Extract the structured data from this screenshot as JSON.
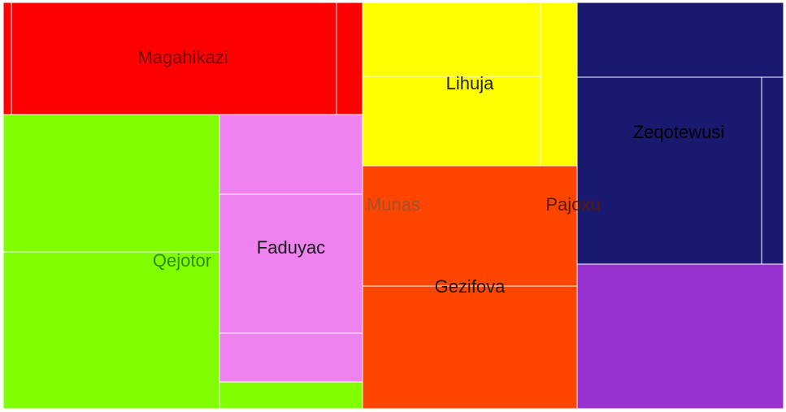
{
  "chart_data": {
    "type": "treemap",
    "title": "",
    "groups": [
      {
        "name": "Magahikazi",
        "color": "#ff0000",
        "label_color": "#7a0000",
        "children": [
          {
            "name": "",
            "value": 10
          },
          {
            "name": "",
            "value": 550
          },
          {
            "name": "",
            "value": 44
          }
        ]
      },
      {
        "name": "Qejotor",
        "color": "#7fff00",
        "label_color": "#2e8b00",
        "children": [
          {
            "name": "",
            "value": 450
          },
          {
            "name": "",
            "value": 515
          },
          {
            "name": "",
            "value": 145
          }
        ]
      },
      {
        "name": "Munas",
        "color": "#ee82ee",
        "label_color": "#a0522d",
        "children": [
          {
            "name": "",
            "value": 172
          },
          {
            "name": "Faduyac",
            "value": 300
          },
          {
            "name": "",
            "value": 105
          }
        ]
      },
      {
        "name": "Lihuja",
        "color": "#ffff00",
        "label_color": "#222222",
        "children": [
          {
            "name": "",
            "value": 201
          },
          {
            "name": "",
            "value": 240
          },
          {
            "name": "",
            "value": 90
          }
        ]
      },
      {
        "name": "Pajoxu",
        "color": "#ff4500",
        "label_color": "#5a1a00",
        "children": [
          {
            "name": "",
            "value": 390
          },
          {
            "name": "Gezifova",
            "value": 400
          }
        ]
      },
      {
        "name": "Zeqotewusi",
        "color": "#191970",
        "label_color": "#000000",
        "children": [
          {
            "name": "",
            "value": 232
          },
          {
            "name": "",
            "value": 497
          },
          {
            "name": "",
            "value": 63
          }
        ]
      },
      {
        "name": "",
        "color": "#9932cc",
        "label_color": "#000000",
        "children": [
          {
            "name": "",
            "value": 457
          }
        ]
      }
    ]
  }
}
